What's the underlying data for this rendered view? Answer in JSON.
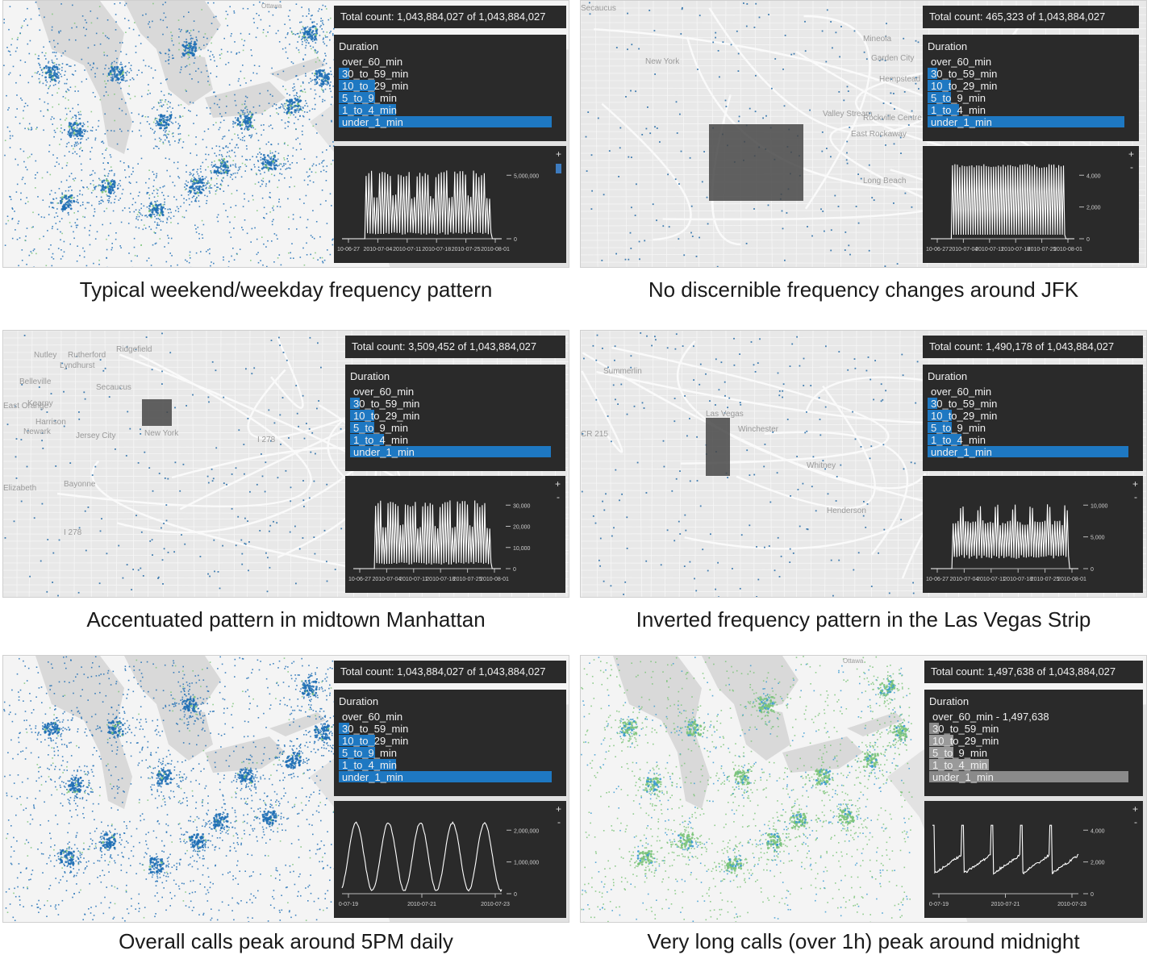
{
  "colors": {
    "accent": "#1e78c2",
    "panel_bg": "#2a2a2a",
    "dot_blue": "#1f6fb5",
    "dot_green": "#7cc47a",
    "legend_gray": "#8a8a8a"
  },
  "panels": [
    {
      "total_count": "Total count: 1,043,884,027 of 1,043,884,027",
      "legend_title": "Duration",
      "legend": [
        {
          "label": "over_60_min",
          "level": 0
        },
        {
          "label": "30_to_59_min",
          "level": 0.06
        },
        {
          "label": "10_to_29_min",
          "level": 0.12
        },
        {
          "label": "5_to_9_min",
          "level": 0.12
        },
        {
          "label": "1_to_4_min",
          "level": 0.3
        },
        {
          "label": "under_1_min",
          "level": 1.0
        }
      ],
      "legend_color": "#1e78c2",
      "chart_data": {
        "type": "line",
        "x_ticks": [
          "10-06-27",
          "2010-07-04",
          "2010-07-11",
          "2010-07-18",
          "2010-07-25",
          "2010-08-01"
        ],
        "y_ticks": [
          "5,000,000",
          "0"
        ],
        "ylim": [
          0,
          7500000
        ],
        "pattern": "weekly_blocks",
        "zoom_plus": "+",
        "zoom_minus": "-"
      },
      "caption": "Typical weekend/weekday frequency pattern"
    },
    {
      "total_count": "Total count: 465,323 of 1,043,884,027",
      "legend_title": "Duration",
      "legend": [
        {
          "label": "over_60_min",
          "level": 0
        },
        {
          "label": "30_to_59_min",
          "level": 0.05
        },
        {
          "label": "10_to_29_min",
          "level": 0.12
        },
        {
          "label": "5_to_9_min",
          "level": 0.12
        },
        {
          "label": "1_to_4_min",
          "level": 0.3
        },
        {
          "label": "under_1_min",
          "level": 1.0
        }
      ],
      "legend_color": "#1e78c2",
      "chart_data": {
        "type": "line",
        "x_ticks": [
          "10-06-27",
          "2010-07-04",
          "2010-07-11",
          "2010-07-18",
          "2010-07-25",
          "2010-08-01"
        ],
        "y_ticks": [
          "4,000",
          "2,000",
          "0"
        ],
        "ylim": [
          0,
          4400
        ],
        "pattern": "uniform_daily",
        "zoom_plus": "+",
        "zoom_minus": "-"
      },
      "caption": "No discernible frequency changes around JFK"
    },
    {
      "total_count": "Total count: 3,509,452 of 1,043,884,027",
      "legend_title": "Duration",
      "legend": [
        {
          "label": "over_60_min",
          "level": 0
        },
        {
          "label": "30_to_59_min",
          "level": 0.05
        },
        {
          "label": "10_to_29_min",
          "level": 0.12
        },
        {
          "label": "5_to_9_min",
          "level": 0.12
        },
        {
          "label": "1_to_4_min",
          "level": 0.3
        },
        {
          "label": "under_1_min",
          "level": 1.0
        }
      ],
      "legend_color": "#1e78c2",
      "chart_data": {
        "type": "line",
        "x_ticks": [
          "10-06-27",
          "2010-07-04",
          "2010-07-11",
          "2010-07-18",
          "2010-07-25",
          "2010-08-01"
        ],
        "y_ticks": [
          "30,000",
          "20,000",
          "10,000",
          "0"
        ],
        "ylim": [
          0,
          33000
        ],
        "pattern": "weekly_blocks",
        "zoom_plus": "+",
        "zoom_minus": "-"
      },
      "caption": "Accentuated pattern in midtown Manhattan"
    },
    {
      "total_count": "Total count: 1,490,178 of 1,043,884,027",
      "legend_title": "Duration",
      "legend": [
        {
          "label": "over_60_min",
          "level": 0
        },
        {
          "label": "30_to_59_min",
          "level": 0.05
        },
        {
          "label": "10_to_29_min",
          "level": 0.12
        },
        {
          "label": "5_to_9_min",
          "level": 0.12
        },
        {
          "label": "1_to_4_min",
          "level": 0.3
        },
        {
          "label": "under_1_min",
          "level": 1.0
        }
      ],
      "legend_color": "#1e78c2",
      "chart_data": {
        "type": "line",
        "x_ticks": [
          "10-06-27",
          "2010-07-04",
          "2010-07-11",
          "2010-07-18",
          "2010-07-25",
          "2010-08-01"
        ],
        "y_ticks": [
          "10,000",
          "5,000",
          "0"
        ],
        "ylim": [
          0,
          12000
        ],
        "pattern": "inverted",
        "zoom_plus": "+",
        "zoom_minus": "-"
      },
      "caption": "Inverted frequency pattern in the Las Vegas Strip"
    },
    {
      "total_count": "Total count: 1,043,884,027 of 1,043,884,027",
      "legend_title": "Duration",
      "legend": [
        {
          "label": "over_60_min",
          "level": 0
        },
        {
          "label": "30_to_59_min",
          "level": 0.06
        },
        {
          "label": "10_to_29_min",
          "level": 0.12
        },
        {
          "label": "5_to_9_min",
          "level": 0.12
        },
        {
          "label": "1_to_4_min",
          "level": 0.3
        },
        {
          "label": "under_1_min",
          "level": 1.0
        }
      ],
      "legend_color": "#1e78c2",
      "chart_data": {
        "type": "line",
        "x_ticks": [
          "0-07-19",
          "2010-07-21",
          "2010-07-23"
        ],
        "y_ticks": [
          "2,000,000",
          "1,000,000",
          "0"
        ],
        "ylim": [
          0,
          2600000
        ],
        "pattern": "daily_sine",
        "zoom_plus": "+",
        "zoom_minus": "-"
      },
      "caption": "Overall calls peak around 5PM daily"
    },
    {
      "total_count": "Total count: 1,497,638 of 1,043,884,027",
      "legend_title": "Duration",
      "legend": [
        {
          "label": "over_60_min - 1,497,638",
          "level": 0
        },
        {
          "label": "30_to_59_min",
          "level": 0.05
        },
        {
          "label": "10_to_29_min",
          "level": 0.12
        },
        {
          "label": "5_to_9_min",
          "level": 0.12
        },
        {
          "label": "1_to_4_min",
          "level": 0.3
        },
        {
          "label": "under_1_min",
          "level": 1.0
        }
      ],
      "legend_color": "#8a8a8a",
      "chart_data": {
        "type": "line",
        "x_ticks": [
          "0-07-19",
          "2010-07-21",
          "2010-07-23"
        ],
        "y_ticks": [
          "4,000",
          "2,000",
          "0"
        ],
        "ylim": [
          0,
          5000
        ],
        "pattern": "daily_spikes",
        "zoom_plus": "+",
        "zoom_minus": "-"
      },
      "caption": "Very long calls (over 1h) peak around midnight"
    }
  ],
  "map_labels": {
    "p1": [
      "Ottawa"
    ],
    "p2": [
      "Secaucus",
      "New York",
      "Mineola",
      "Garden City",
      "Hempstead",
      "Rockville Centre",
      "East Rockaway",
      "Long Beach",
      "Valley Stream"
    ],
    "p3": [
      "Nutley",
      "Rutherford",
      "Lyndhurst",
      "Ridgefield",
      "Belleville",
      "Secaucus",
      "Kearny",
      "East Orange",
      "Harrison",
      "Newark",
      "Jersey City",
      "New York",
      "Bayonne",
      "Elizabeth",
      "I 278",
      "I 278"
    ],
    "p4": [
      "Summerlin",
      "Las Vegas",
      "Winchester",
      "Whitney",
      "Henderson",
      "CR 215"
    ],
    "p6": [
      "Ottawa"
    ]
  }
}
